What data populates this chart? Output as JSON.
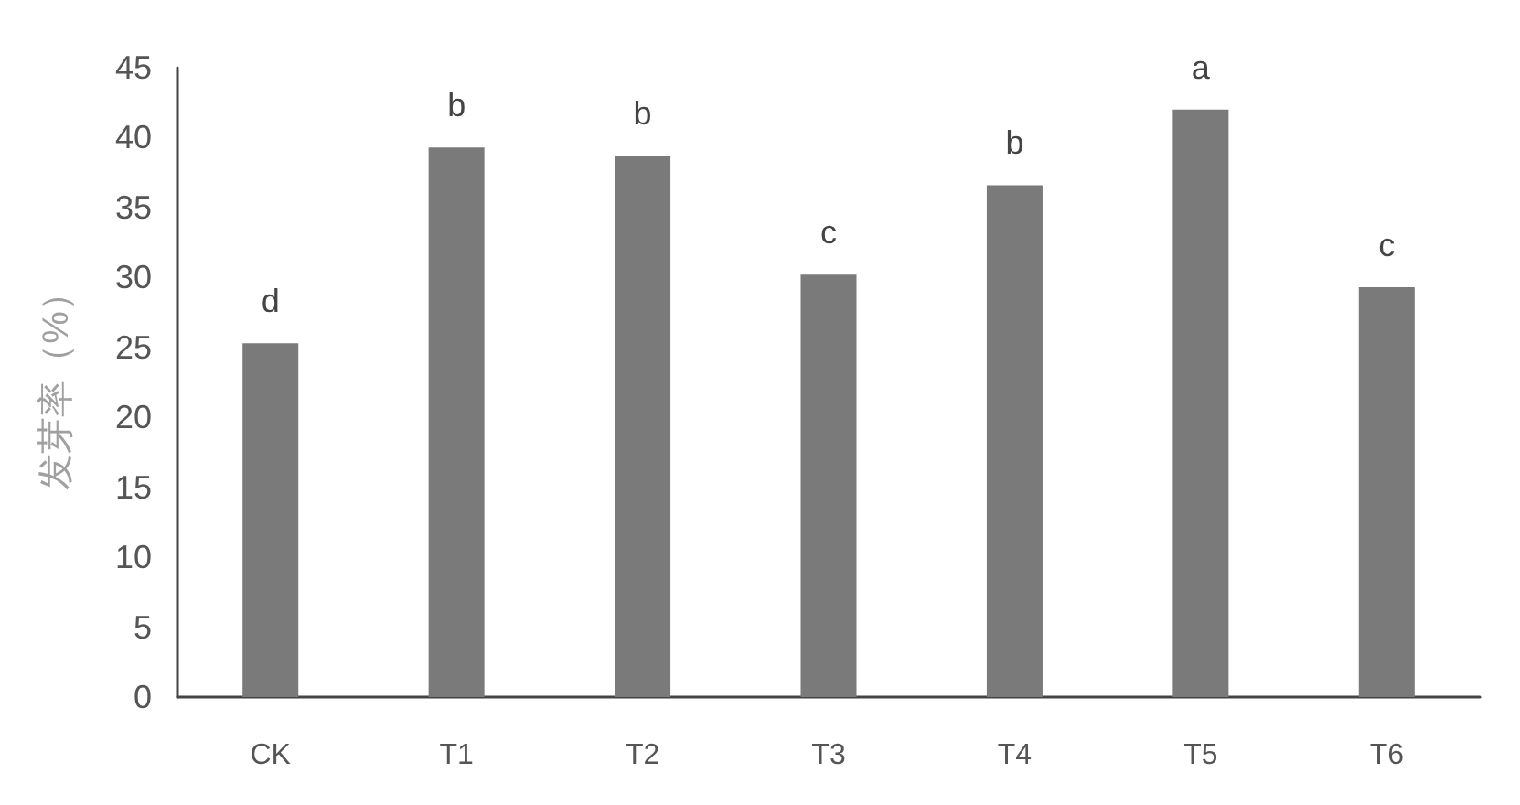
{
  "chart_data": {
    "type": "bar",
    "ylabel": "发芽率（%）",
    "categories": [
      "CK",
      "T1",
      "T2",
      "T3",
      "T4",
      "T5",
      "T6"
    ],
    "values": [
      25.3,
      39.3,
      38.7,
      30.2,
      36.6,
      42.0,
      29.3
    ],
    "color": "#7a7a7a",
    "ylim": [
      0,
      45
    ],
    "yticks": [
      0,
      5,
      10,
      15,
      20,
      25,
      30,
      35,
      40,
      45
    ],
    "grid": false,
    "annotations": [
      {
        "text": "d",
        "x": "CK",
        "y": 25.3
      },
      {
        "text": "b",
        "x": "T1",
        "y": 39.3
      },
      {
        "text": "b",
        "x": "T2",
        "y": 38.7
      },
      {
        "text": "c",
        "x": "T3",
        "y": 30.2
      },
      {
        "text": "b",
        "x": "T4",
        "y": 36.6
      },
      {
        "text": "a",
        "x": "T5",
        "y": 42.0
      },
      {
        "text": "c",
        "x": "T6",
        "y": 29.3
      }
    ]
  }
}
